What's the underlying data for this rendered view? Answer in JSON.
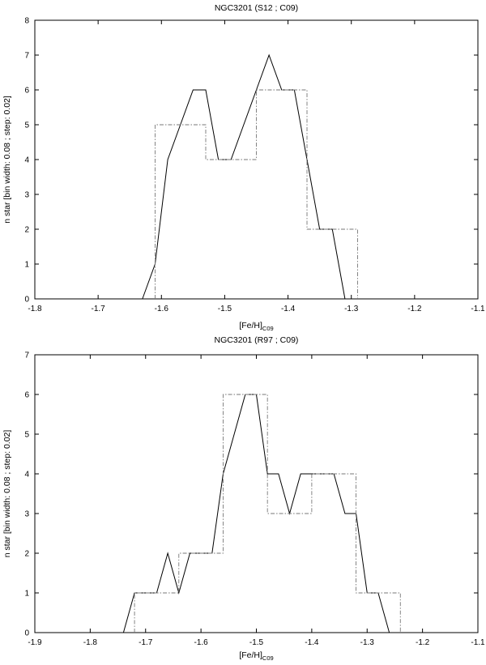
{
  "chart_data": [
    {
      "type": "line",
      "title": "NGC3201 (S12 ; C09)",
      "xlabel": "[Fe/H]",
      "xlabel_sub": "C09",
      "ylabel": "n star [bin width: 0.08 ; step: 0.02]",
      "xlim": [
        -1.8,
        -1.1
      ],
      "ylim": [
        0,
        8
      ],
      "xticks": [
        -1.8,
        -1.7,
        -1.6,
        -1.5,
        -1.4,
        -1.3,
        -1.2,
        -1.1
      ],
      "xtick_labels": [
        "-1.8",
        "-1.7",
        "-1.6",
        "-1.5",
        "-1.4",
        "-1.3",
        "-1.2",
        "-1.1"
      ],
      "yticks": [
        0,
        1,
        2,
        3,
        4,
        5,
        6,
        7,
        8
      ],
      "ytick_labels": [
        "0",
        "1",
        "2",
        "3",
        "4",
        "5",
        "6",
        "7",
        "8"
      ],
      "grid": false,
      "series": [
        {
          "style": "solid",
          "x": [
            -1.63,
            -1.61,
            -1.59,
            -1.57,
            -1.55,
            -1.53,
            -1.51,
            -1.49,
            -1.47,
            -1.45,
            -1.43,
            -1.41,
            -1.39,
            -1.37,
            -1.35,
            -1.33,
            -1.31
          ],
          "y": [
            0,
            1,
            4,
            5,
            6,
            6,
            4,
            4,
            5,
            6,
            7,
            6,
            6,
            4,
            2,
            2,
            0
          ]
        },
        {
          "style": "dashdot-step",
          "x": [
            -1.61,
            -1.61,
            -1.53,
            -1.53,
            -1.45,
            -1.45,
            -1.37,
            -1.37,
            -1.29,
            -1.29
          ],
          "y": [
            0,
            5,
            5,
            4,
            4,
            6,
            6,
            2,
            2,
            0
          ]
        }
      ]
    },
    {
      "type": "line",
      "title": "NGC3201 (R97 ; C09)",
      "xlabel": "[Fe/H]",
      "xlabel_sub": "C09",
      "ylabel": "n star [bin width: 0.08 ; step: 0.02]",
      "xlim": [
        -1.9,
        -1.1
      ],
      "ylim": [
        0,
        7
      ],
      "xticks": [
        -1.9,
        -1.8,
        -1.7,
        -1.6,
        -1.5,
        -1.4,
        -1.3,
        -1.2,
        -1.1
      ],
      "xtick_labels": [
        "-1.9",
        "-1.8",
        "-1.7",
        "-1.6",
        "-1.5",
        "-1.4",
        "-1.3",
        "-1.2",
        "-1.1"
      ],
      "yticks": [
        0,
        1,
        2,
        3,
        4,
        5,
        6,
        7
      ],
      "ytick_labels": [
        "0",
        "1",
        "2",
        "3",
        "4",
        "5",
        "6",
        "7"
      ],
      "grid": false,
      "series": [
        {
          "style": "solid",
          "x": [
            -1.74,
            -1.72,
            -1.7,
            -1.68,
            -1.66,
            -1.64,
            -1.62,
            -1.6,
            -1.58,
            -1.56,
            -1.54,
            -1.52,
            -1.5,
            -1.48,
            -1.46,
            -1.44,
            -1.42,
            -1.4,
            -1.38,
            -1.36,
            -1.34,
            -1.32,
            -1.3,
            -1.28,
            -1.26
          ],
          "y": [
            0,
            1,
            1,
            1,
            2,
            1,
            2,
            2,
            2,
            4,
            5,
            6,
            6,
            4,
            4,
            3,
            4,
            4,
            4,
            4,
            3,
            3,
            1,
            1,
            0
          ]
        },
        {
          "style": "dashdot-step",
          "x": [
            -1.72,
            -1.72,
            -1.64,
            -1.64,
            -1.56,
            -1.56,
            -1.48,
            -1.48,
            -1.4,
            -1.4,
            -1.32,
            -1.32,
            -1.24,
            -1.24
          ],
          "y": [
            0,
            1,
            1,
            2,
            2,
            6,
            6,
            3,
            3,
            4,
            4,
            1,
            1,
            0
          ]
        }
      ]
    }
  ]
}
